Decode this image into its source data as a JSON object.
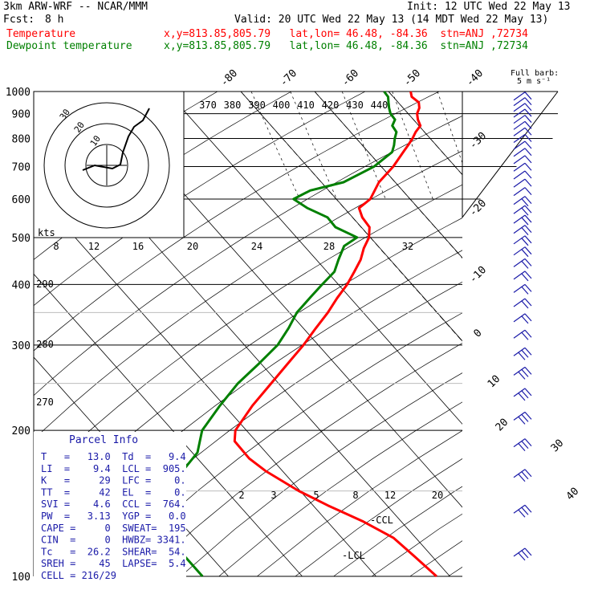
{
  "header": {
    "model": "3km ARW-WRF -- NCAR/MMM",
    "init": "Init: 12 UTC Wed 22 May 13",
    "fcst_label": "Fcst:",
    "fcst_value": "8 h",
    "valid": "Valid: 20 UTC Wed 22 May 13 (14 MDT Wed 22 May 13)",
    "temperature_label": "Temperature",
    "dewpoint_label": "Dewpoint temperature",
    "location_temperature": "x,y=813.85,805.79   lat,lon= 46.48, -84.36  stn=ANJ ,72734",
    "location_dewpoint": "x,y=813.85,805.79   lat,lon= 46.48, -84.36  stn=ANJ ,72734",
    "colors": {
      "temperature": "#ff0000",
      "dewpoint": "#008000",
      "text": "#000000",
      "info": "#1a1aa8"
    }
  },
  "barb_legend": {
    "title": "Full barb:",
    "units": "5 m s⁻¹"
  },
  "hodograph": {
    "units_label": "kts",
    "ring_labels": [
      "10",
      "20",
      "30"
    ],
    "speed_ticks": [
      "8",
      "12",
      "16",
      "20",
      "24",
      "28",
      "32"
    ]
  },
  "theta_labels": [
    "370",
    "380",
    "390",
    "400",
    "410",
    "420",
    "430",
    "440"
  ],
  "theta_side_labels": [
    "290",
    "280",
    "270"
  ],
  "mixing_ratio_labels": [
    "2",
    "3",
    "5",
    "8",
    "12",
    "20"
  ],
  "lcl_labels": {
    "ccl": "-CCL",
    "lcl": "-LCL"
  },
  "parcel_info": {
    "title": "Parcel Info",
    "rows": [
      "T   =   13.0  Td  =   9.4",
      "LI  =    9.4  LCL =  905.",
      "K   =     29  LFC =    0.",
      "TT  =     42  EL  =    0.",
      "SVI =    4.6  CCL =  764.",
      "PW  =   3.13  YGP =   0.0",
      "CAPE =     0  SWEAT=  195",
      "CIN  =     0  HWBZ= 3341.",
      "Tc   =  26.2  SHEAR=  54.",
      "SREH =    45  LAPSE=  5.4",
      "CELL = 216/29"
    ]
  },
  "chart_data": {
    "type": "line",
    "title": "3km ARW-WRF -- NCAR/MMM",
    "xlabel": "",
    "ylabel": "",
    "y_scale": "log-pressure (hPa), inverted",
    "ylim": [
      1000,
      100
    ],
    "pressure_ticks": [
      "100",
      "200",
      "300",
      "400",
      "500",
      "600",
      "700",
      "800",
      "900",
      "1000"
    ],
    "isotherm_labels": [
      "-80",
      "-70",
      "-60",
      "-50",
      "-40",
      "-30",
      "-20",
      "-10",
      "0",
      "10",
      "20",
      "30",
      "40"
    ],
    "series": [
      {
        "name": "Temperature",
        "color": "#ff0000",
        "points": [
          [
            1000,
            13.0
          ],
          [
            975,
            12.5
          ],
          [
            950,
            12.8
          ],
          [
            925,
            12.2
          ],
          [
            900,
            11.2
          ],
          [
            875,
            10.6
          ],
          [
            850,
            10.2
          ],
          [
            825,
            8.8
          ],
          [
            800,
            7.6
          ],
          [
            775,
            6.2
          ],
          [
            750,
            4.7
          ],
          [
            700,
            1.6
          ],
          [
            650,
            -2.2
          ],
          [
            600,
            -5.4
          ],
          [
            575,
            -8.0
          ],
          [
            550,
            -8.7
          ],
          [
            525,
            -8.9
          ],
          [
            500,
            -10.2
          ],
          [
            475,
            -12.2
          ],
          [
            450,
            -14.0
          ],
          [
            425,
            -16.3
          ],
          [
            400,
            -18.8
          ],
          [
            375,
            -21.8
          ],
          [
            350,
            -24.8
          ],
          [
            325,
            -28.3
          ],
          [
            300,
            -32.0
          ],
          [
            275,
            -36.3
          ],
          [
            250,
            -41.0
          ],
          [
            225,
            -46.2
          ],
          [
            200,
            -51.5
          ],
          [
            190,
            -52.9
          ],
          [
            175,
            -53.0
          ],
          [
            165,
            -52.3
          ],
          [
            150,
            -50.2
          ],
          [
            140,
            -48.0
          ],
          [
            130,
            -45.2
          ],
          [
            120,
            -43.0
          ],
          [
            110,
            -42.4
          ],
          [
            100,
            -41.8
          ]
        ]
      },
      {
        "name": "Dewpoint temperature",
        "color": "#008000",
        "points": [
          [
            1000,
            9.4
          ],
          [
            975,
            9.3
          ],
          [
            950,
            8.7
          ],
          [
            925,
            8.1
          ],
          [
            900,
            7.6
          ],
          [
            875,
            7.5
          ],
          [
            850,
            6.4
          ],
          [
            825,
            6.2
          ],
          [
            800,
            5.2
          ],
          [
            775,
            4.3
          ],
          [
            750,
            3.2
          ],
          [
            700,
            -1.0
          ],
          [
            650,
            -7.0
          ],
          [
            625,
            -12.5
          ],
          [
            600,
            -15.8
          ],
          [
            575,
            -15.0
          ],
          [
            550,
            -13.4
          ],
          [
            525,
            -13.5
          ],
          [
            500,
            -11.8
          ],
          [
            480,
            -14.6
          ],
          [
            450,
            -17.0
          ],
          [
            425,
            -19.0
          ],
          [
            400,
            -22.2
          ],
          [
            375,
            -25.5
          ],
          [
            350,
            -29.0
          ],
          [
            325,
            -32.0
          ],
          [
            300,
            -35.5
          ],
          [
            275,
            -40.2
          ],
          [
            250,
            -45.5
          ],
          [
            225,
            -50.6
          ],
          [
            200,
            -56.0
          ],
          [
            180,
            -59.3
          ],
          [
            165,
            -63.5
          ],
          [
            150,
            -68.0
          ],
          [
            140,
            -68.6
          ],
          [
            130,
            -71.0
          ],
          [
            120,
            -73.0
          ],
          [
            112,
            -73.5
          ],
          [
            100,
            -73.5
          ]
        ]
      }
    ]
  }
}
